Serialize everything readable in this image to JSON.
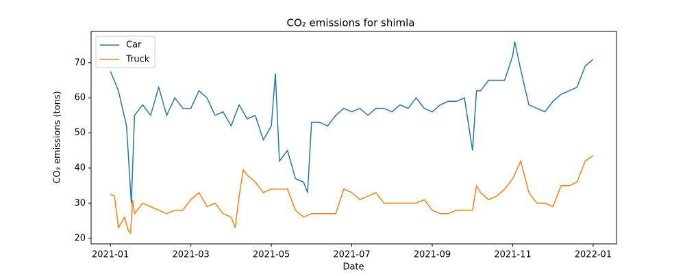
{
  "chart_data": {
    "type": "line",
    "title": "CO₂ emissions for shimla",
    "x_label": "Date",
    "y_label": "CO₂ emissions (tons)",
    "xlim": [
      -0.48,
      12.58
    ],
    "ylim": [
      18.4,
      78.9
    ],
    "xticks": [
      {
        "value": 0,
        "label": "2021-01"
      },
      {
        "value": 2,
        "label": "2021-03"
      },
      {
        "value": 4,
        "label": "2021-05"
      },
      {
        "value": 6,
        "label": "2021-07"
      },
      {
        "value": 8,
        "label": "2021-09"
      },
      {
        "value": 10,
        "label": "2021-11"
      },
      {
        "value": 12,
        "label": "2022-01"
      }
    ],
    "yticks": [
      20,
      30,
      40,
      50,
      60,
      70
    ],
    "legend": "upper left",
    "series": [
      {
        "name": "Car",
        "color": "#1f77b4",
        "x": [
          0,
          0.2,
          0.4,
          0.52,
          0.6,
          0.8,
          1.0,
          1.2,
          1.4,
          1.6,
          1.8,
          2.0,
          2.2,
          2.4,
          2.6,
          2.8,
          3.0,
          3.2,
          3.4,
          3.6,
          3.8,
          4.0,
          4.1,
          4.2,
          4.4,
          4.6,
          4.8,
          4.9,
          5.0,
          5.2,
          5.4,
          5.6,
          5.8,
          6.0,
          6.2,
          6.4,
          6.6,
          6.8,
          7.0,
          7.2,
          7.4,
          7.6,
          7.8,
          8.0,
          8.2,
          8.4,
          8.6,
          8.8,
          9.0,
          9.1,
          9.2,
          9.4,
          9.6,
          9.8,
          10.0,
          10.05,
          10.2,
          10.4,
          10.6,
          10.8,
          11.0,
          11.2,
          11.4,
          11.6,
          11.8,
          12.0
        ],
        "values": [
          67.5,
          62,
          52,
          30,
          55,
          58,
          55,
          63,
          55,
          60,
          57,
          57,
          62,
          60,
          55,
          56,
          52,
          58,
          54,
          55,
          48,
          52,
          67,
          42,
          45,
          37,
          36,
          33,
          53,
          53,
          52,
          55,
          57,
          56,
          57,
          55,
          57,
          57,
          56,
          58,
          57,
          60,
          57,
          56,
          58,
          59,
          59,
          60,
          45,
          62,
          62,
          65,
          65,
          65,
          72,
          76,
          68,
          58,
          57,
          56,
          59,
          61,
          62,
          63,
          69,
          71
        ]
      },
      {
        "name": "Truck",
        "color": "#ff7f0e",
        "x": [
          0,
          0.1,
          0.2,
          0.35,
          0.45,
          0.5,
          0.55,
          0.6,
          0.8,
          1.0,
          1.2,
          1.4,
          1.6,
          1.8,
          2.0,
          2.2,
          2.4,
          2.6,
          2.8,
          3.0,
          3.1,
          3.2,
          3.3,
          3.4,
          3.6,
          3.8,
          4.0,
          4.2,
          4.4,
          4.6,
          4.8,
          5.0,
          5.2,
          5.4,
          5.6,
          5.8,
          6.0,
          6.2,
          6.4,
          6.6,
          6.8,
          7.0,
          7.2,
          7.4,
          7.6,
          7.8,
          8.0,
          8.2,
          8.4,
          8.6,
          8.8,
          9.0,
          9.1,
          9.2,
          9.4,
          9.6,
          9.8,
          10.0,
          10.2,
          10.4,
          10.6,
          10.8,
          11.0,
          11.2,
          11.4,
          11.6,
          11.8,
          12.0
        ],
        "values": [
          32.5,
          32,
          23,
          26,
          22,
          21.5,
          31,
          27,
          30,
          29,
          28,
          27,
          28,
          28,
          31,
          33,
          29,
          30,
          27,
          26,
          23,
          32,
          39.5,
          38,
          36,
          33,
          34,
          34,
          34,
          28,
          26,
          27,
          27,
          27,
          27,
          34,
          33,
          31,
          32,
          33,
          30,
          30,
          30,
          30,
          30,
          31,
          28,
          27,
          27,
          28,
          28,
          28,
          35,
          33,
          31,
          32,
          34,
          37,
          42,
          33,
          30,
          30,
          29,
          35,
          35,
          36,
          42,
          43.5
        ]
      }
    ]
  }
}
